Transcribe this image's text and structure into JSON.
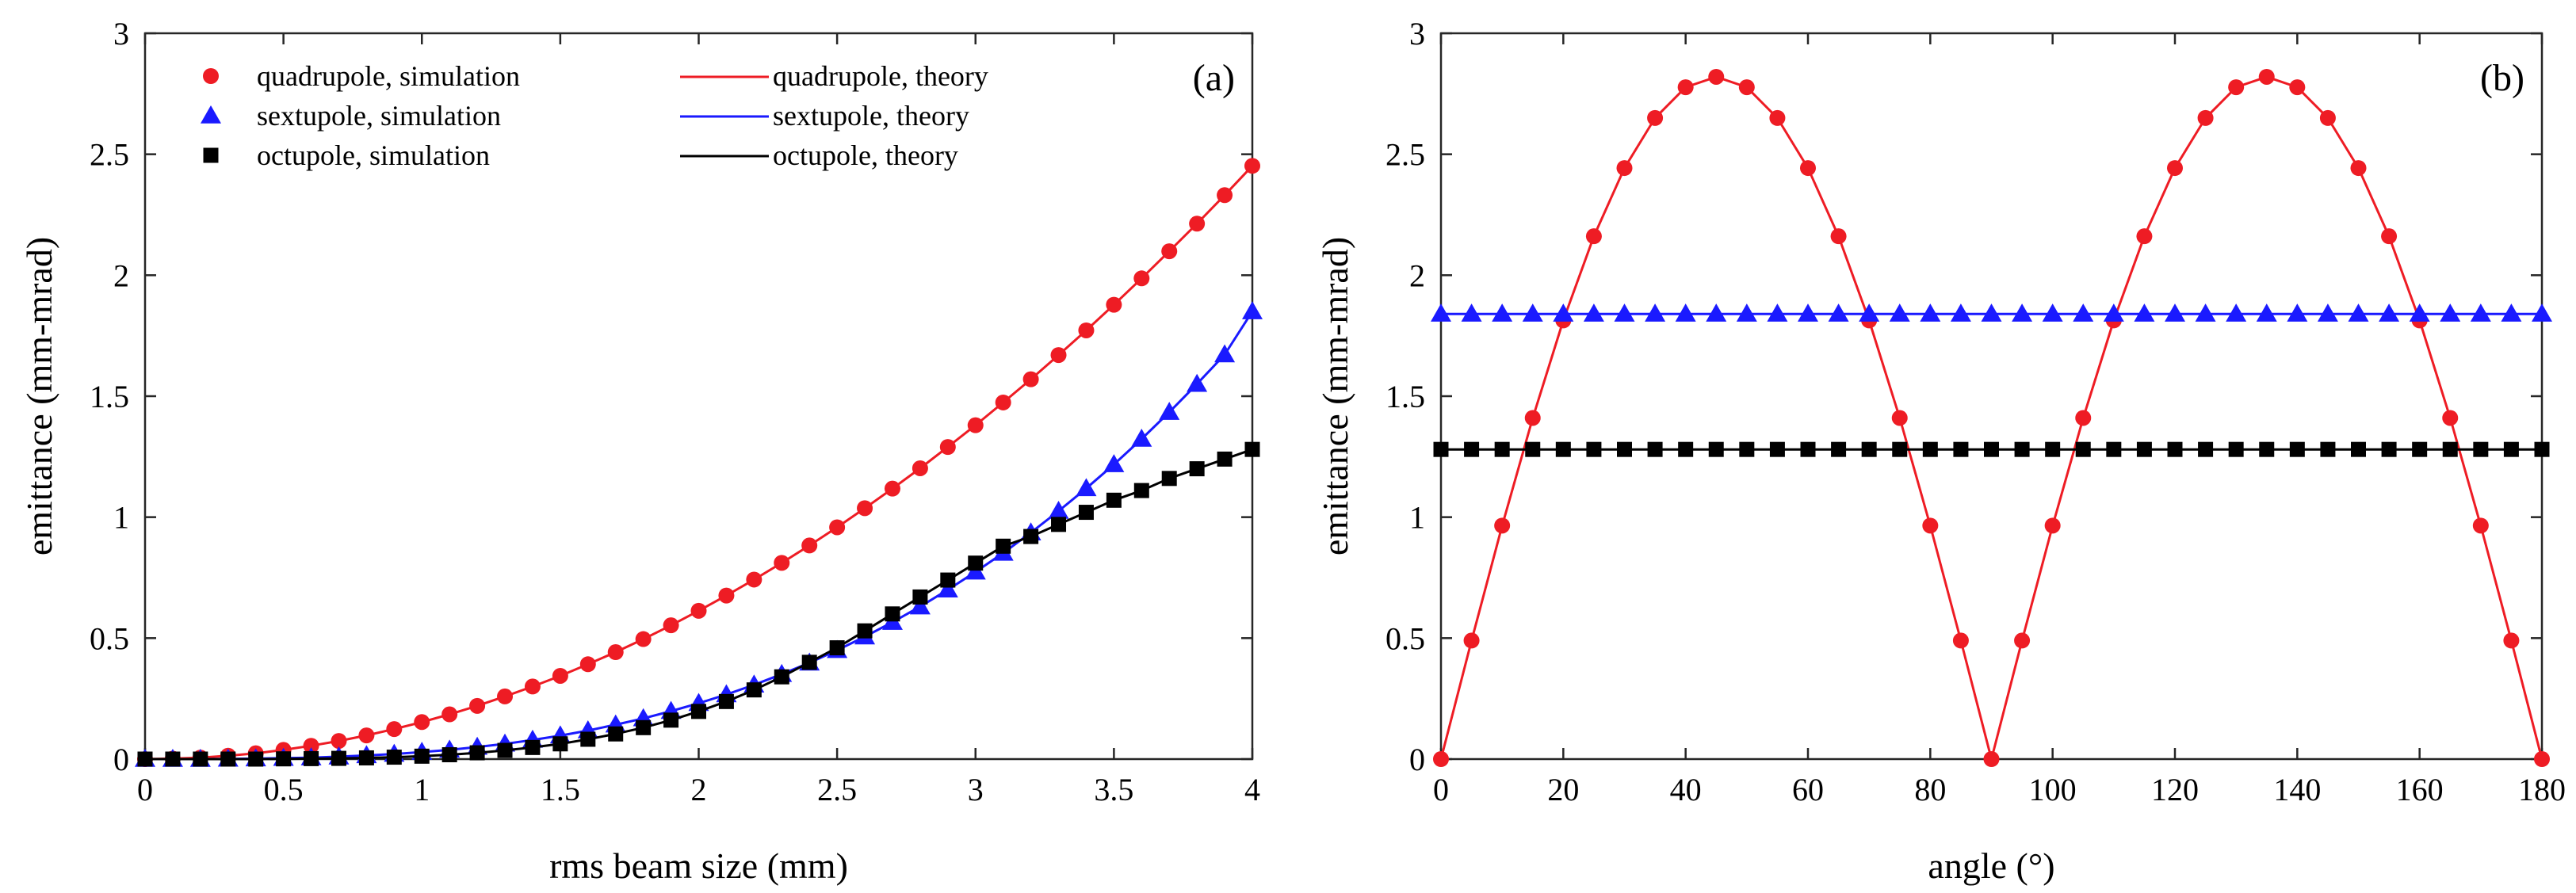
{
  "chart_data": [
    {
      "type": "line",
      "panel_label": "(a)",
      "xlabel": "rms beam size (mm)",
      "ylabel": "emittance (mm-mrad)",
      "xlim": [
        0,
        4
      ],
      "ylim": [
        0,
        3
      ],
      "xticks": [
        "0",
        "0.5",
        "1",
        "1.5",
        "2",
        "2.5",
        "3",
        "3.5",
        "4"
      ],
      "yticks": [
        "0",
        "0.5",
        "1",
        "1.5",
        "2",
        "2.5",
        "3"
      ],
      "legend_location": "top-left",
      "legend": [
        {
          "label": "quadrupole, simulation",
          "marker": "circle",
          "color": "#ee1c24"
        },
        {
          "label": "sextupole, simulation",
          "marker": "triangle",
          "color": "#1a1aff"
        },
        {
          "label": "octupole, simulation",
          "marker": "square",
          "color": "#000000"
        },
        {
          "label": "quadrupole, theory",
          "marker": "line",
          "color": "#ee1c24"
        },
        {
          "label": "sextupole, theory",
          "marker": "line",
          "color": "#1a1aff"
        },
        {
          "label": "octupole, theory",
          "marker": "line",
          "color": "#000000"
        }
      ],
      "x": [
        0,
        0.1,
        0.2,
        0.3,
        0.4,
        0.5,
        0.6,
        0.7,
        0.8,
        0.9,
        1.0,
        1.1,
        1.2,
        1.3,
        1.4,
        1.5,
        1.6,
        1.7,
        1.8,
        1.9,
        2.0,
        2.1,
        2.2,
        2.3,
        2.4,
        2.5,
        2.6,
        2.7,
        2.8,
        2.9,
        3.0,
        3.1,
        3.2,
        3.3,
        3.4,
        3.5,
        3.6,
        3.7,
        3.8,
        3.9,
        4.0
      ],
      "series": [
        {
          "name": "quadrupole",
          "color": "#ee1c24",
          "marker": "circle",
          "values": [
            0,
            0.002,
            0.006,
            0.014,
            0.024,
            0.038,
            0.055,
            0.075,
            0.098,
            0.124,
            0.153,
            0.185,
            0.22,
            0.259,
            0.3,
            0.344,
            0.392,
            0.442,
            0.496,
            0.553,
            0.613,
            0.676,
            0.742,
            0.811,
            0.883,
            0.958,
            1.037,
            1.118,
            1.202,
            1.29,
            1.38,
            1.474,
            1.57,
            1.67,
            1.772,
            1.878,
            1.987,
            2.099,
            2.213,
            2.331,
            2.452
          ]
        },
        {
          "name": "sextupole",
          "color": "#1a1aff",
          "marker": "triangle",
          "values": [
            0,
            0.0,
            0.0,
            0.001,
            0.002,
            0.004,
            0.006,
            0.01,
            0.015,
            0.021,
            0.029,
            0.038,
            0.05,
            0.063,
            0.079,
            0.097,
            0.118,
            0.142,
            0.168,
            0.198,
            0.231,
            0.267,
            0.307,
            0.351,
            0.398,
            0.45,
            0.506,
            0.566,
            0.63,
            0.7,
            0.774,
            0.852,
            0.936,
            1.025,
            1.119,
            1.218,
            1.323,
            1.434,
            1.55,
            1.672,
            1.85
          ]
        },
        {
          "name": "octupole",
          "color": "#000000",
          "marker": "square",
          "values": [
            0,
            0.0,
            0.0,
            0.0,
            0.0,
            0.001,
            0.002,
            0.003,
            0.005,
            0.008,
            0.012,
            0.018,
            0.026,
            0.036,
            0.048,
            0.063,
            0.082,
            0.104,
            0.13,
            0.161,
            0.197,
            0.238,
            0.286,
            0.34,
            0.4,
            0.46,
            0.53,
            0.6,
            0.67,
            0.74,
            0.81,
            0.88,
            0.92,
            0.97,
            1.02,
            1.07,
            1.11,
            1.16,
            1.2,
            1.24,
            1.28
          ]
        }
      ]
    },
    {
      "type": "line",
      "panel_label": "(b)",
      "xlabel": "angle (°)",
      "ylabel": "emittance (mm-mrad)",
      "xlim": [
        0,
        180
      ],
      "ylim": [
        0,
        3
      ],
      "xticks": [
        "0",
        "20",
        "40",
        "60",
        "80",
        "100",
        "120",
        "140",
        "160",
        "180"
      ],
      "yticks": [
        "0",
        "0.5",
        "1",
        "1.5",
        "2",
        "2.5",
        "3"
      ],
      "x": [
        0,
        5,
        10,
        15,
        20,
        25,
        30,
        35,
        40,
        45,
        50,
        55,
        60,
        65,
        70,
        75,
        80,
        85,
        90,
        95,
        100,
        105,
        110,
        115,
        120,
        125,
        130,
        135,
        140,
        145,
        150,
        155,
        160,
        165,
        170,
        175,
        180
      ],
      "series": [
        {
          "name": "quadrupole",
          "color": "#ee1c24",
          "marker": "circle",
          "values": [
            0,
            0.49,
            0.965,
            1.41,
            1.813,
            2.161,
            2.443,
            2.65,
            2.777,
            2.82,
            2.777,
            2.65,
            2.443,
            2.161,
            1.813,
            1.41,
            0.965,
            0.49,
            0,
            0.49,
            0.965,
            1.41,
            1.813,
            2.161,
            2.443,
            2.65,
            2.777,
            2.82,
            2.777,
            2.65,
            2.443,
            2.161,
            1.813,
            1.41,
            0.965,
            0.49,
            0
          ]
        },
        {
          "name": "sextupole",
          "color": "#1a1aff",
          "marker": "triangle",
          "values": [
            1.84,
            1.84,
            1.84,
            1.84,
            1.84,
            1.84,
            1.84,
            1.84,
            1.84,
            1.84,
            1.84,
            1.84,
            1.84,
            1.84,
            1.84,
            1.84,
            1.84,
            1.84,
            1.84,
            1.84,
            1.84,
            1.84,
            1.84,
            1.84,
            1.84,
            1.84,
            1.84,
            1.84,
            1.84,
            1.84,
            1.84,
            1.84,
            1.84,
            1.84,
            1.84,
            1.84,
            1.84
          ]
        },
        {
          "name": "octupole",
          "color": "#000000",
          "marker": "square",
          "values": [
            1.28,
            1.28,
            1.28,
            1.28,
            1.28,
            1.28,
            1.28,
            1.28,
            1.28,
            1.28,
            1.28,
            1.28,
            1.28,
            1.28,
            1.28,
            1.28,
            1.28,
            1.28,
            1.28,
            1.28,
            1.28,
            1.28,
            1.28,
            1.28,
            1.28,
            1.28,
            1.28,
            1.28,
            1.28,
            1.28,
            1.28,
            1.28,
            1.28,
            1.28,
            1.28,
            1.28,
            1.28
          ]
        }
      ]
    }
  ]
}
